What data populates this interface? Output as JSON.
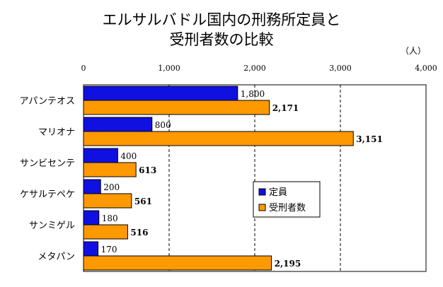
{
  "chart_data": {
    "type": "bar",
    "orientation": "horizontal",
    "title_lines": [
      "エルサルバドル国内の刑務所定員と",
      "受刑者数の比較"
    ],
    "unit": "（人）",
    "categories": [
      "アパンテオス",
      "マリオナ",
      "サンビセンテ",
      "ケサルテペケ",
      "サンミゲル",
      "メタパン"
    ],
    "series": [
      {
        "name": "定員",
        "values": [
          1800,
          800,
          400,
          200,
          180,
          170
        ],
        "labels": [
          "1,800",
          "800",
          "400",
          "200",
          "180",
          "170"
        ],
        "color": "#1010e0"
      },
      {
        "name": "受刑者数",
        "values": [
          2171,
          3151,
          613,
          561,
          516,
          2195
        ],
        "labels": [
          "2,171",
          "3,151",
          "613",
          "561",
          "516",
          "2,195"
        ],
        "color": "#ff9900"
      }
    ],
    "xlim": [
      0,
      4000
    ],
    "xticks": [
      0,
      1000,
      2000,
      3000,
      4000
    ],
    "xtick_labels": [
      "0",
      "1,000",
      "2,000",
      "3,000",
      "4,000"
    ],
    "grid": true,
    "legend_position": "right"
  }
}
